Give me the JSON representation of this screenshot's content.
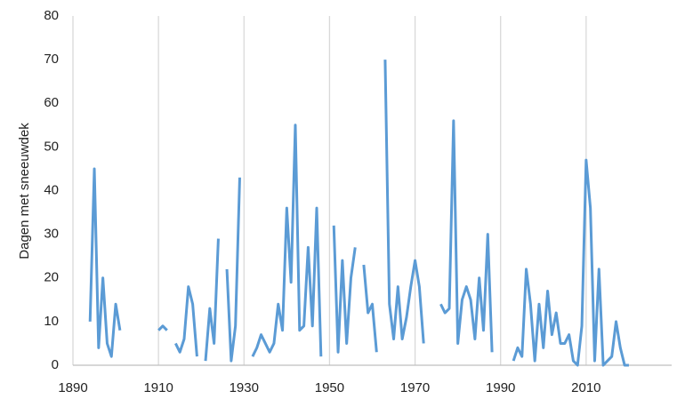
{
  "chart_data": {
    "type": "line",
    "y_label": "Dagen met sneeuwdek",
    "color": "#5b9bd5",
    "grid": "vertical",
    "x": [
      1894,
      1895,
      1896,
      1897,
      1898,
      1899,
      1900,
      1901,
      1902,
      1903,
      1904,
      1905,
      1906,
      1907,
      1908,
      1909,
      1910,
      1911,
      1912,
      1913,
      1914,
      1915,
      1916,
      1917,
      1918,
      1919,
      1920,
      1921,
      1922,
      1923,
      1924,
      1925,
      1926,
      1927,
      1928,
      1929,
      1930,
      1931,
      1932,
      1933,
      1934,
      1935,
      1936,
      1937,
      1938,
      1939,
      1940,
      1941,
      1942,
      1943,
      1944,
      1945,
      1946,
      1947,
      1948,
      1949,
      1950,
      1951,
      1952,
      1953,
      1954,
      1955,
      1956,
      1957,
      1958,
      1959,
      1960,
      1961,
      1962,
      1963,
      1964,
      1965,
      1966,
      1967,
      1968,
      1969,
      1970,
      1971,
      1972,
      1973,
      1974,
      1975,
      1976,
      1977,
      1978,
      1979,
      1980,
      1981,
      1982,
      1983,
      1984,
      1985,
      1986,
      1987,
      1988,
      1989,
      1990,
      1991,
      1992,
      1993,
      1994,
      1995,
      1996,
      1997,
      1998,
      1999,
      2000,
      2001,
      2002,
      2003,
      2004,
      2005,
      2006,
      2007,
      2008,
      2009,
      2010,
      2011,
      2012,
      2013,
      2014,
      2015,
      2016,
      2017,
      2018,
      2019,
      2020
    ],
    "values": [
      10,
      45,
      4,
      20,
      5,
      2,
      14,
      8,
      null,
      null,
      null,
      null,
      null,
      null,
      null,
      null,
      8,
      9,
      8,
      null,
      5,
      3,
      6,
      18,
      14,
      2,
      null,
      1,
      13,
      5,
      29,
      null,
      22,
      1,
      9,
      43,
      null,
      null,
      2,
      4,
      7,
      5,
      3,
      5,
      14,
      8,
      36,
      19,
      55,
      8,
      9,
      27,
      9,
      36,
      2,
      null,
      null,
      32,
      3,
      24,
      5,
      20,
      27,
      null,
      23,
      12,
      14,
      3,
      null,
      70,
      14,
      6,
      18,
      6,
      11,
      18,
      24,
      18,
      5,
      null,
      null,
      null,
      14,
      12,
      13,
      56,
      5,
      15,
      18,
      15,
      6,
      20,
      8,
      30,
      3,
      null,
      null,
      null,
      null,
      1,
      4,
      2,
      22,
      14,
      1,
      14,
      4,
      17,
      7,
      12,
      5,
      5,
      7,
      1,
      0,
      9,
      47,
      36,
      1,
      22,
      0,
      1,
      2,
      10,
      4,
      0,
      0
    ],
    "xlim": [
      1890,
      2030
    ],
    "xticks": [
      1890,
      1910,
      1930,
      1950,
      1970,
      1990,
      2010
    ],
    "ylim": [
      0,
      80
    ],
    "yticks": [
      0,
      10,
      20,
      30,
      40,
      50,
      60,
      70,
      80
    ]
  }
}
